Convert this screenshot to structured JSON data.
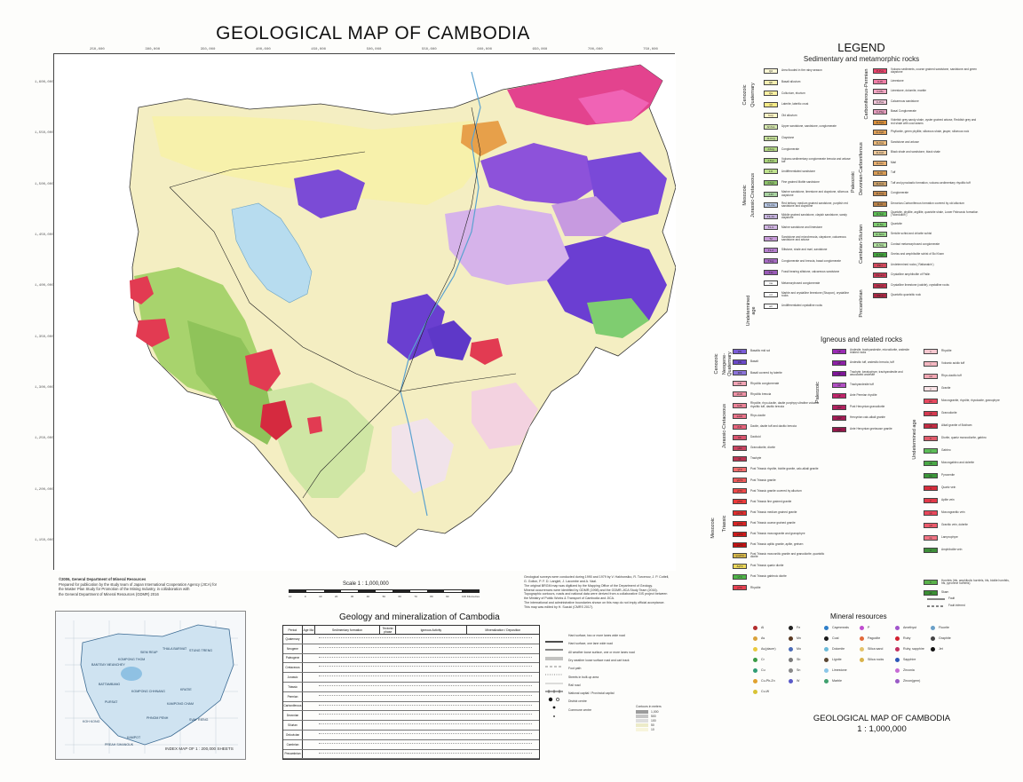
{
  "title": "GEOLOGICAL MAP OF CAMBODIA",
  "legend": {
    "title": "LEGEND",
    "sedimentary_heading": "Sedimentary and metamorphic rocks",
    "igneous_heading": "Igneous and related rocks",
    "sed_left_groups": [
      {
        "label": "Cenozoic",
        "sub": "Quaternary"
      },
      {
        "label": "Mesozoic",
        "sub": "Jurassic-Cretaceous"
      },
      {
        "label": "Undetermined age",
        "sub": ""
      }
    ],
    "sed_left": [
      {
        "code": "Q2",
        "color": "#fbf8d4",
        "text": "Area flooded in the rainy season"
      },
      {
        "code": "Qb",
        "color": "#f3eeb0",
        "text": "Basalt alluvium"
      },
      {
        "code": "Qa",
        "color": "#fbf1a2",
        "text": "Colluvium, eluvium"
      },
      {
        "code": "Ql",
        "color": "#f7ec87",
        "text": "Laterite, lateritic crust"
      },
      {
        "code": "N-Q",
        "color": "#fff8c6",
        "text": "Old alluvium"
      },
      {
        "code": "J2-Kss",
        "color": "#d9ecb0",
        "text": "Upper sandstone, sandstone, conglomerate"
      },
      {
        "code": "J1-Kcg",
        "color": "#c7e39a",
        "text": "Claystone"
      },
      {
        "code": "J-Kcg",
        "color": "#b4da85",
        "text": "Conglomerate"
      },
      {
        "code": "J-Kvs",
        "color": "#a9d47a",
        "text": "Volcano-sedimentary conglomerate breccia and arkose tuff"
      },
      {
        "code": "J-K",
        "color": "#bfe28d",
        "text": "Undifferentiated sandstone"
      },
      {
        "code": "J-Kgs",
        "color": "#8ec36a",
        "text": "Fine grained Mottle sandstone"
      },
      {
        "code": "J-Kl",
        "color": "#a8d3a0",
        "text": "Marine sandstone, limestone and claystone, siliceous claystone"
      },
      {
        "code": "T3-J1s",
        "color": "#b9c9e6",
        "text": "Red tertiary, medium grained sandstone, purplish red sandstone and claystone"
      },
      {
        "code": "T3-Jm",
        "color": "#c6b3de",
        "text": "Middle grained sandstone, clayish sandstone, sandy claystone"
      },
      {
        "code": "T2-lc",
        "color": "#d2b6e4",
        "text": "Marine sandstone and limestone"
      },
      {
        "code": "T2",
        "color": "#c79ad8",
        "text": "Sandstone and microbreccia, claystone, calcareous sandstone and arkose"
      },
      {
        "code": "T1-2",
        "color": "#b67fce",
        "text": "Siltstone, shale and marl, sandstone"
      },
      {
        "code": "T1cg",
        "color": "#a66bc2",
        "text": "Conglomerate and breccia, basal conglomerate"
      },
      {
        "code": "T1s",
        "color": "#9a5ab8",
        "text": "Fossil bearing siltstone, calcareous sandstone"
      },
      {
        "code": "ms",
        "color": "#ffffff",
        "text": "Metamorphosed conglomerate"
      },
      {
        "code": "ml",
        "color": "#ffffff",
        "text": "Marble and crystalline limestone (Sisopon), crystalline rocks"
      },
      {
        "code": "ucr",
        "color": "#ffffff",
        "text": "Undifferentiated crystalline rocks"
      }
    ],
    "sed_right_groups": [
      {
        "label": "Carboniferous-Permian",
        "sub": ""
      },
      {
        "label": "Paleozoic",
        "sub": "Devonian-Carboniferous"
      },
      {
        "label": "Cambrian-Silurian",
        "sub": ""
      },
      {
        "label": "Precambrian",
        "sub": ""
      }
    ],
    "sed_right": [
      {
        "code": "P-Pvs",
        "color": "#e8456b",
        "text": "Volcano sediments, course grained sandstone, sandstone and green claystone"
      },
      {
        "code": "C-Pl",
        "color": "#ef7ea6",
        "text": "Limestone"
      },
      {
        "code": "C-Pls",
        "color": "#f3a6c2",
        "text": "Limestone, dolomite, marble"
      },
      {
        "code": "C-Pss",
        "color": "#efc3d6",
        "text": "Calcareous sandstone"
      },
      {
        "code": "C-Pbg",
        "color": "#e49cbc",
        "text": "Basal Conglomerate"
      },
      {
        "code": "D-Cpv",
        "color": "#d98f3b",
        "text": "Violetish grey sandy shale, oyster grained arkose, Reddish grey and red shale with coal seams"
      },
      {
        "code": "D-Cph",
        "color": "#e3a35a",
        "text": "Phyllonite, green phyllite, siliceous shale, jasper, siliceous rock"
      },
      {
        "code": "D-Css",
        "color": "#ebb97a",
        "text": "Sandstone and arkose"
      },
      {
        "code": "D-Csh",
        "color": "#efc99a",
        "text": "Black shale and sandstone, black shale"
      },
      {
        "code": "D-Cm",
        "color": "#e9b070",
        "text": "Marl"
      },
      {
        "code": "D-Ct",
        "color": "#d89c55",
        "text": "Tuff"
      },
      {
        "code": "D-Cvs",
        "color": "#caa06a",
        "text": "Tuff and pyroclastic formation, volcano-sedimentary rhyolitic tuff"
      },
      {
        "code": "D-Ccg",
        "color": "#c68c4f",
        "text": "Conglomerate"
      },
      {
        "code": "D-Cl",
        "color": "#b88148",
        "text": "Devonian-Carboniferous formation covered by old alluvium"
      },
      {
        "code": "Є-Sqt",
        "color": "#5fbf56",
        "text": "Quartzite, phyllite, argillite, quartzite shale, Lower Paleozoic formation ( Mondulkiri )"
      },
      {
        "code": "Є-Sq",
        "color": "#7fcd70",
        "text": "Quartzite"
      },
      {
        "code": "Є-Sms",
        "color": "#9ad98a",
        "text": "Sericite schist and chlorite schist"
      },
      {
        "code": "Є-Scg",
        "color": "#b4e4a3",
        "text": "Contact metamorphosed conglomerate"
      },
      {
        "code": "Є-Sgn",
        "color": "#43a43d",
        "text": "Gneiss and amphibolite schist of Bo Kham"
      },
      {
        "code": "PЄ-r",
        "color": "#d3495c",
        "text": "Undetermined rocks ( Rattanakiri )"
      },
      {
        "code": "PЄ-am",
        "color": "#c93955",
        "text": "Crystalline amphibolite of Pailin"
      },
      {
        "code": "PЄ-cl",
        "color": "#bc2f4b",
        "text": "Crystalline limestone (calcite), crystalline rocks"
      },
      {
        "code": "PЄ-q",
        "color": "#a92843",
        "text": "Quartzitic quartzitic rock"
      }
    ],
    "ign_a": [
      {
        "code": "βQ",
        "color": "#7a5cd6",
        "text": "Basaltic mid sol"
      },
      {
        "code": "βN",
        "color": "#6a49c8",
        "text": "Basalt"
      },
      {
        "code": "βNl",
        "color": "#8c74da",
        "text": "Basalt covered by laterite"
      },
      {
        "code": "λJK",
        "color": "#f1a4b4",
        "text": "Rhyolitic conglomerate"
      },
      {
        "code": "λbJK",
        "color": "#ef93a6",
        "text": "Rhyolitic breccia"
      },
      {
        "code": "λtJK",
        "color": "#ed8398",
        "text": "Rhyolite, rhyo-dacite, dacite porphyry ultrafine volcanic rhyolitic tuff, dacitic breccia"
      },
      {
        "code": "λdJK",
        "color": "#eb7389",
        "text": "Rhyo-dacite"
      },
      {
        "code": "δJK",
        "color": "#e8637b",
        "text": "Dacite, dacite tuff and dacitic breccia"
      },
      {
        "code": "δK",
        "color": "#d9536d",
        "text": "Dacitoid"
      },
      {
        "code": "γδK",
        "color": "#ca4360",
        "text": "Granodiorite, diorite"
      },
      {
        "code": "τK",
        "color": "#bb3452",
        "text": "Trachyte"
      },
      {
        "code": "γT3",
        "color": "#f26c6c",
        "text": "Post Triassic rhyolite, biotite granite, calc-alkali granite"
      },
      {
        "code": "γbT3",
        "color": "#f05a5a",
        "text": "Post Triassic granite"
      },
      {
        "code": "γlT3",
        "color": "#ee4a4a",
        "text": "Post Triassic granite covered by alluvium"
      },
      {
        "code": "γfT3",
        "color": "#ec3a3a",
        "text": "Post Triassic fine grained granite"
      },
      {
        "code": "γmT3",
        "color": "#e42e2e",
        "text": "Post Triassic medium grained granite"
      },
      {
        "code": "γcT3",
        "color": "#da2424",
        "text": "Post Triassic coarse grained granite"
      },
      {
        "code": "γdT3",
        "color": "#d01b1b",
        "text": "Post Triassic monzogranite and granophyre"
      },
      {
        "code": "γaT3",
        "color": "#c61212",
        "text": "Post Triassic aplitic granite, aplite, greisen"
      },
      {
        "code": "γmzT3",
        "color": "#d8b94a",
        "text": "Post Triassic monzonitic granite and granodiorite, quartzitic diorite"
      },
      {
        "code": "δqT3",
        "color": "#ecd85a",
        "text": "Post Triassic quartz diorite"
      },
      {
        "code": "νT3",
        "color": "#4fb548",
        "text": "Post Triassic gabbroic diorite"
      },
      {
        "code": "ρT3",
        "color": "#e84050",
        "text": "Rhyolite"
      }
    ],
    "ign_a_groups": [
      {
        "label": "Cenozoic",
        "sub": "Neogene-Quaternary"
      },
      {
        "label": "Jurassic-Cretaceous",
        "sub": ""
      },
      {
        "label": "Mesozoic",
        "sub": "Triassic"
      }
    ],
    "ign_b": [
      {
        "code": "λP",
        "color": "#9b2bb4",
        "text": "Andesite, trachyandesite, microdiorite, andesite related rocks"
      },
      {
        "code": "αP",
        "color": "#8d20a6",
        "text": "Andesitic tuff, andesitic breccia, tuff"
      },
      {
        "code": "τP",
        "color": "#7f1698",
        "text": "Trachyte, keratophyre, trachyandesite and associated andesite"
      },
      {
        "code": "τtP",
        "color": "#b24fc4",
        "text": "Trachyandesite tuff"
      },
      {
        "code": "γP",
        "color": "#c1246a",
        "text": "Ante Permian rhyolite"
      },
      {
        "code": "γδP",
        "color": "#b3205f",
        "text": "Post Hercynian granodiorite"
      },
      {
        "code": "γhP",
        "color": "#a51c55",
        "text": "Hercynian calc-alkali granite"
      },
      {
        "code": "γgC",
        "color": "#97184b",
        "text": "Ante Hercynian gneissose granite"
      }
    ],
    "ign_b_groups": [
      {
        "label": "Paleozoic",
        "sub": "Permian / Carboniferous"
      }
    ],
    "ign_c": [
      {
        "code": "λ",
        "color": "#f6c7cf",
        "text": "Rhyolite"
      },
      {
        "code": "τ",
        "color": "#f4b7c1",
        "text": "Volcanic acidic tuff"
      },
      {
        "code": "λd",
        "color": "#f2a7b3",
        "text": "Rhyo-dacitic tuff"
      },
      {
        "code": "γ",
        "color": "#fbe3e6",
        "text": "Granite"
      },
      {
        "code": "γm",
        "color": "#e8495f",
        "text": "Monzogranite, rhyolite, rhyodacite, granophyre"
      },
      {
        "code": "γδ",
        "color": "#d63a50",
        "text": "Granodiorite"
      },
      {
        "code": "γb",
        "color": "#c42b42",
        "text": "Alkali granite of Bokham"
      },
      {
        "code": "δ",
        "color": "#e05b6a",
        "text": "Diorite, quartz monzodiorite, gabbro"
      },
      {
        "code": "ν",
        "color": "#5dbd58",
        "text": "Gabbro"
      },
      {
        "code": "νδ",
        "color": "#4aa946",
        "text": "Monzogabbro and dolerite"
      },
      {
        "code": "πρ",
        "color": "#3c973a",
        "text": "Pyroxenite"
      },
      {
        "code": "q",
        "color": "#d62d3b",
        "text": "Quartz vein"
      },
      {
        "code": "ρ",
        "color": "#e33a4a",
        "text": "Aplite vein"
      },
      {
        "code": "γp",
        "color": "#e9475b",
        "text": "Monzogranitic vein"
      },
      {
        "code": "γd",
        "color": "#ed5b6c",
        "text": "Granitic vein, dolerite"
      },
      {
        "code": "λp",
        "color": "#f17383",
        "text": "Lamprophyre"
      },
      {
        "code": "α",
        "color": "#3d8f3a",
        "text": "Amphibolite vein"
      }
    ],
    "ign_c_groups": [
      {
        "label": "Undetermined age",
        "sub": ""
      }
    ],
    "hornfels": {
      "code": "h",
      "color": "#5ab24b",
      "text": "Hornfels (hfs, amphibolic hornfels, hfs, biotite hornfels, hfs, pyroxene hornfels)"
    },
    "skarn": {
      "code": "sk",
      "color": "#3b8f34",
      "text": "Skarn"
    }
  },
  "footnote_left": [
    "©2006, General Department of Mineral Resources",
    "Prepared for publication by the study team of Japan International Cooperation Agency (JICA) for",
    "the Master Plan Study for Promotion of the Mining Industry, in collaboration with",
    "the General Department of Mineral Resources (GDMR) 2016"
  ],
  "footnote_right": [
    "Geological surveys were conducted during 1990 and 1979 by V. Hakhonsiko, R. Turcenov, J. P. Cottell,",
    "G. Gollon, P. F. D. Langlet, J. Lacombe and A. Vaal.",
    "The original BRGM map was digitized by the Mapping Office of the Department of Geology.",
    "Mineral occurrences were identified by GDMR (1998) and the GDMR-JICA Study Team (2016).",
    "Topographic contours, roads and national data were derived from a collaborative GIS project between",
    "the Ministry of Public Works & Transport of Cambodia and JICA.",
    "The international and administrative boundaries shown on this map do not imply official acceptance.",
    "This map was edited by H. Suzuki (CMRS 2017)."
  ],
  "scale": {
    "label": "Scale  1 : 1,000,000",
    "ticks": [
      "10",
      "0",
      "10",
      "20",
      "30",
      "40",
      "50",
      "60",
      "70",
      "80",
      "90",
      "100 Kilometres"
    ]
  },
  "index_map": {
    "caption": "INDEX MAP OF 1 : 200,000 SHEETS",
    "sheets": [
      "KOMPONG THOM",
      "SIEM REAP",
      "THALA BARIVAT",
      "STUNG TRENG",
      "BANTEAY MEANCHEY",
      "BATTAMBANG",
      "KOMPONG CHHNANG",
      "KRATIE",
      "PURSAT",
      "KAMPONG CHAM",
      "KOH KONG",
      "PHNOM PENH",
      "KAMPOT",
      "SVAY RIENG",
      "PREAH SIHANOUK"
    ]
  },
  "chronology": {
    "title": "Geology and mineralization of Cambodia",
    "headers": [
      "Period",
      "Age Ma",
      "Sedimentary formation",
      "Tectonic phase",
      "Igneous Activity",
      "Mineralization / Deposition"
    ],
    "periods": [
      "Quaternary",
      "Neogene",
      "Paleogene",
      "Cretaceous",
      "Jurassic",
      "Triassic",
      "Permian",
      "Carboniferous",
      "Devonian",
      "Silurian",
      "Ordovician",
      "Cambrian",
      "Precambrian"
    ]
  },
  "road_legend": [
    {
      "text": "Hard surface, two or more lanes wide road",
      "style": "thick"
    },
    {
      "text": "Hard surface, one lane wide road",
      "style": "medium"
    },
    {
      "text": "All weather loose surface, one or more lanes road",
      "style": "double"
    },
    {
      "text": "Dry weather loose surface road and cart track",
      "style": "dashed"
    },
    {
      "text": "Foot path",
      "style": "dotted"
    },
    {
      "text": "Streets in built-up area",
      "style": "thin"
    },
    {
      "text": "Rail road",
      "style": "rail"
    },
    {
      "text": "National capital / Provincial capital",
      "style": "capital"
    },
    {
      "text": "District centre",
      "style": "district"
    },
    {
      "text": "Commune centre",
      "style": "commune"
    }
  ],
  "contour_legend": {
    "title": "Contours in meters",
    "values": [
      "1,000",
      "500",
      "100",
      "50",
      "10"
    ]
  },
  "minerals": {
    "title": "Mineral resources",
    "items": [
      {
        "sym": "Al",
        "color": "#b32d2d"
      },
      {
        "sym": "Fe",
        "color": "#222222"
      },
      {
        "sym": "Caymmeals",
        "color": "#2f7fc9"
      },
      {
        "sym": "P",
        "color": "#c04dd0"
      },
      {
        "sym": "Amethyst",
        "color": "#a155cc"
      },
      {
        "sym": "Fluorite",
        "color": "#6aa0c8"
      },
      {
        "sym": "As",
        "color": "#d9a23a"
      },
      {
        "sym": "Mn",
        "color": "#5a3a22"
      },
      {
        "sym": "Coal",
        "color": "#1a1a1a"
      },
      {
        "sym": "Pagodite",
        "color": "#e26a3a"
      },
      {
        "sym": "Ruby",
        "color": "#d2202f"
      },
      {
        "sym": "Graphite",
        "color": "#444444"
      },
      {
        "sym": "Au(placer)",
        "color": "#e9c93d"
      },
      {
        "sym": "Mo",
        "color": "#4b6cb7"
      },
      {
        "sym": "Dolomite",
        "color": "#6bbad8"
      },
      {
        "sym": "Silica sand",
        "color": "#e3c26a"
      },
      {
        "sym": "Ruby, sapphire",
        "color": "#c2305e"
      },
      {
        "sym": "Jet",
        "color": "#111111"
      },
      {
        "sym": "Cr",
        "color": "#3b9b45"
      },
      {
        "sym": "Sb",
        "color": "#7a7a7a"
      },
      {
        "sym": "Lignite",
        "color": "#5b4632"
      },
      {
        "sym": "Silica rocks",
        "color": "#d9b24a"
      },
      {
        "sym": "Sapphire",
        "color": "#2c56b8"
      },
      {
        "sym": "",
        "color": "#ffffff"
      },
      {
        "sym": "Cu",
        "color": "#2f9c74"
      },
      {
        "sym": "Sn",
        "color": "#8a8a8a"
      },
      {
        "sym": "Limestone",
        "color": "#8bc6e8"
      },
      {
        "sym": "",
        "color": "#ffffff"
      },
      {
        "sym": "Zirconia",
        "color": "#c66bd4"
      },
      {
        "sym": "",
        "color": "#ffffff"
      },
      {
        "sym": "Cu-Pb-Zn",
        "color": "#e0a12e"
      },
      {
        "sym": "W",
        "color": "#5a5ac9"
      },
      {
        "sym": "Marble",
        "color": "#3fa06e"
      },
      {
        "sym": "",
        "color": "#ffffff"
      },
      {
        "sym": "Zircon(gem)",
        "color": "#9a5bc6"
      },
      {
        "sym": "",
        "color": "#ffffff"
      },
      {
        "sym": "Cu-W",
        "color": "#d8c335"
      }
    ]
  },
  "fault_legend": [
    {
      "text": "Fault"
    },
    {
      "text": "Fault inferred"
    }
  ],
  "bottom_title": {
    "line1": "GEOLOGICAL MAP OF CAMBODIA",
    "line2": "1 : 1,000,000"
  },
  "map_ticks_top": [
    "250,000",
    "300,000",
    "350,000",
    "400,000",
    "450,000",
    "500,000",
    "550,000",
    "600,000",
    "650,000",
    "700,000",
    "750,000"
  ],
  "map_ticks_left": [
    "1,600,000",
    "1,550,000",
    "1,500,000",
    "1,450,000",
    "1,400,000",
    "1,350,000",
    "1,300,000",
    "1,250,000",
    "1,200,000",
    "1,150,000"
  ]
}
